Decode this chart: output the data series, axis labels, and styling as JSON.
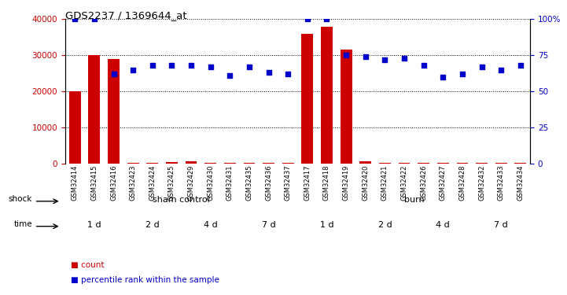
{
  "title": "GDS2237 / 1369644_at",
  "samples": [
    "GSM32414",
    "GSM32415",
    "GSM32416",
    "GSM32423",
    "GSM32424",
    "GSM32425",
    "GSM32429",
    "GSM32430",
    "GSM32431",
    "GSM32435",
    "GSM32436",
    "GSM32437",
    "GSM32417",
    "GSM32418",
    "GSM32419",
    "GSM32420",
    "GSM32421",
    "GSM32422",
    "GSM32426",
    "GSM32427",
    "GSM32428",
    "GSM32432",
    "GSM32433",
    "GSM32434"
  ],
  "count_values": [
    20000,
    30000,
    29000,
    200,
    200,
    400,
    700,
    200,
    200,
    200,
    200,
    200,
    36000,
    38000,
    31500,
    700,
    200,
    200,
    200,
    200,
    200,
    200,
    200,
    200
  ],
  "percentile_values": [
    100,
    100,
    62,
    65,
    68,
    68,
    68,
    67,
    61,
    67,
    63,
    62,
    100,
    100,
    75,
    74,
    72,
    73,
    68,
    60,
    62,
    67,
    65,
    68
  ],
  "count_color": "#cc0000",
  "percentile_color": "#0000cc",
  "ylim_left": [
    0,
    40000
  ],
  "ylim_right": [
    0,
    100
  ],
  "yticks_left": [
    0,
    10000,
    20000,
    30000,
    40000
  ],
  "ytick_labels_left": [
    "0",
    "10000",
    "20000",
    "30000",
    "40000"
  ],
  "yticks_right": [
    0,
    25,
    50,
    75,
    100
  ],
  "ytick_labels_right": [
    "0",
    "25",
    "50",
    "75",
    "100%"
  ],
  "shock_groups": [
    {
      "label": "sham control",
      "start": 0,
      "end": 12,
      "color": "#c8f0c8"
    },
    {
      "label": "burn",
      "start": 12,
      "end": 24,
      "color": "#50c850"
    }
  ],
  "time_groups": [
    {
      "label": "1 d",
      "start": 0,
      "end": 3,
      "color": "#ffccff"
    },
    {
      "label": "2 d",
      "start": 3,
      "end": 6,
      "color": "#dd88dd"
    },
    {
      "label": "4 d",
      "start": 6,
      "end": 9,
      "color": "#ffccff"
    },
    {
      "label": "7 d",
      "start": 9,
      "end": 12,
      "color": "#dd88dd"
    },
    {
      "label": "1 d",
      "start": 12,
      "end": 15,
      "color": "#ffccff"
    },
    {
      "label": "2 d",
      "start": 15,
      "end": 18,
      "color": "#dd88dd"
    },
    {
      "label": "4 d",
      "start": 18,
      "end": 21,
      "color": "#ffccff"
    },
    {
      "label": "7 d",
      "start": 21,
      "end": 24,
      "color": "#dd88dd"
    }
  ],
  "shock_label": "shock",
  "time_label": "time",
  "legend_count": "count",
  "legend_percentile": "percentile rank within the sample",
  "background_color": "#ffffff",
  "dotgrid_color": "#000000"
}
